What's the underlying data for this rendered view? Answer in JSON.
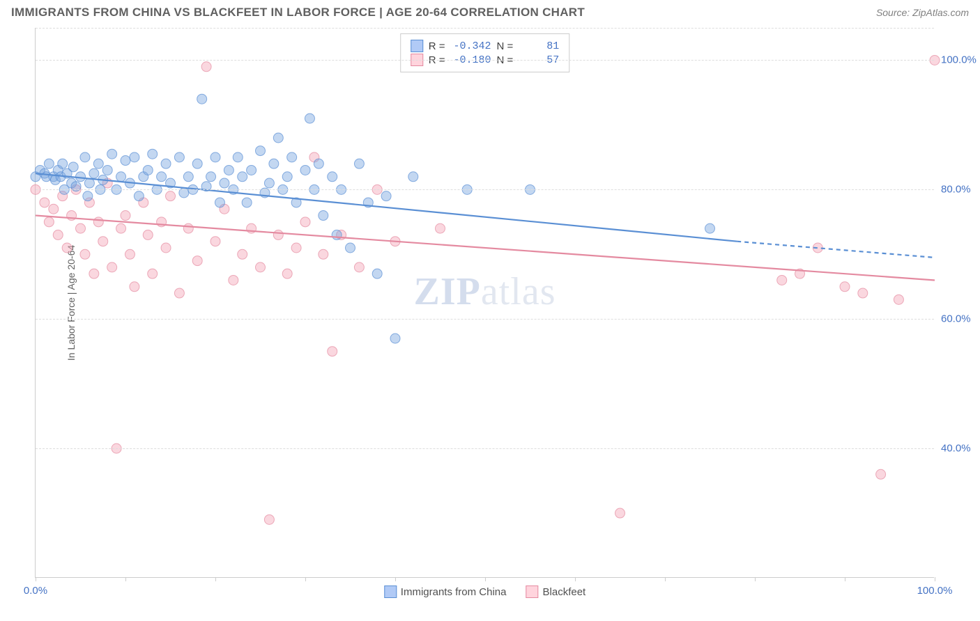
{
  "header": {
    "title": "IMMIGRANTS FROM CHINA VS BLACKFEET IN LABOR FORCE | AGE 20-64 CORRELATION CHART",
    "source_prefix": "Source: ",
    "source_name": "ZipAtlas.com"
  },
  "chart": {
    "type": "scatter",
    "background_color": "#ffffff",
    "grid_color": "#dddddd",
    "axis_color": "#cccccc",
    "label_color": "#4472c4",
    "axis_title_color": "#606060",
    "y_axis_label": "In Labor Force | Age 20-64",
    "xlim": [
      0,
      100
    ],
    "ylim": [
      20,
      105
    ],
    "x_ticks": [
      0,
      10,
      20,
      30,
      40,
      50,
      60,
      70,
      80,
      90,
      100
    ],
    "x_tick_labels": {
      "0": "0.0%",
      "100": "100.0%"
    },
    "y_ticks": [
      40,
      60,
      80,
      100
    ],
    "y_tick_labels": {
      "40": "40.0%",
      "60": "60.0%",
      "80": "80.0%",
      "100": "100.0%"
    },
    "marker_radius": 7,
    "marker_opacity": 0.45,
    "line_width": 2.2,
    "watermark": {
      "text_zip": "ZIP",
      "text_atlas": "atlas"
    }
  },
  "series": {
    "blue": {
      "name": "Immigrants from China",
      "color_fill": "#7ba7e0",
      "color_stroke": "#5a8fd4",
      "R": "-0.342",
      "N": "81",
      "trend": {
        "x1": 0,
        "y1": 82.5,
        "x2": 78,
        "y2": 72.0,
        "x2_ext": 100,
        "y2_ext": 69.5
      },
      "points": [
        [
          0,
          82
        ],
        [
          0.5,
          83
        ],
        [
          1,
          82.5
        ],
        [
          1.2,
          82
        ],
        [
          1.5,
          84
        ],
        [
          2,
          82
        ],
        [
          2.2,
          81.5
        ],
        [
          2.5,
          83
        ],
        [
          2.8,
          82
        ],
        [
          3,
          84
        ],
        [
          3.2,
          80
        ],
        [
          3.5,
          82.5
        ],
        [
          4,
          81
        ],
        [
          4.2,
          83.5
        ],
        [
          4.5,
          80.5
        ],
        [
          5,
          82
        ],
        [
          5.5,
          85
        ],
        [
          5.8,
          79
        ],
        [
          6,
          81
        ],
        [
          6.5,
          82.5
        ],
        [
          7,
          84
        ],
        [
          7.2,
          80
        ],
        [
          7.5,
          81.5
        ],
        [
          8,
          83
        ],
        [
          8.5,
          85.5
        ],
        [
          9,
          80
        ],
        [
          9.5,
          82
        ],
        [
          10,
          84.5
        ],
        [
          10.5,
          81
        ],
        [
          11,
          85
        ],
        [
          11.5,
          79
        ],
        [
          12,
          82
        ],
        [
          12.5,
          83
        ],
        [
          13,
          85.5
        ],
        [
          13.5,
          80
        ],
        [
          14,
          82
        ],
        [
          14.5,
          84
        ],
        [
          15,
          81
        ],
        [
          16,
          85
        ],
        [
          16.5,
          79.5
        ],
        [
          17,
          82
        ],
        [
          17.5,
          80
        ],
        [
          18,
          84
        ],
        [
          18.5,
          94
        ],
        [
          19,
          80.5
        ],
        [
          19.5,
          82
        ],
        [
          20,
          85
        ],
        [
          20.5,
          78
        ],
        [
          21,
          81
        ],
        [
          21.5,
          83
        ],
        [
          22,
          80
        ],
        [
          22.5,
          85
        ],
        [
          23,
          82
        ],
        [
          23.5,
          78
        ],
        [
          24,
          83
        ],
        [
          25,
          86
        ],
        [
          25.5,
          79.5
        ],
        [
          26,
          81
        ],
        [
          26.5,
          84
        ],
        [
          27,
          88
        ],
        [
          27.5,
          80
        ],
        [
          28,
          82
        ],
        [
          28.5,
          85
        ],
        [
          29,
          78
        ],
        [
          30,
          83
        ],
        [
          30.5,
          91
        ],
        [
          31,
          80
        ],
        [
          31.5,
          84
        ],
        [
          32,
          76
        ],
        [
          33,
          82
        ],
        [
          33.5,
          73
        ],
        [
          34,
          80
        ],
        [
          35,
          71
        ],
        [
          36,
          84
        ],
        [
          37,
          78
        ],
        [
          38,
          67
        ],
        [
          39,
          79
        ],
        [
          40,
          57
        ],
        [
          42,
          82
        ],
        [
          48,
          80
        ],
        [
          55,
          80
        ],
        [
          75,
          74
        ]
      ]
    },
    "pink": {
      "name": "Blackfeet",
      "color_fill": "#f4a7b9",
      "color_stroke": "#e48aa0",
      "R": "-0.180",
      "N": "57",
      "trend": {
        "x1": 0,
        "y1": 76.0,
        "x2": 100,
        "y2": 66.0
      },
      "points": [
        [
          0,
          80
        ],
        [
          1,
          78
        ],
        [
          1.5,
          75
        ],
        [
          2,
          77
        ],
        [
          2.5,
          73
        ],
        [
          3,
          79
        ],
        [
          3.5,
          71
        ],
        [
          4,
          76
        ],
        [
          4.5,
          80
        ],
        [
          5,
          74
        ],
        [
          5.5,
          70
        ],
        [
          6,
          78
        ],
        [
          6.5,
          67
        ],
        [
          7,
          75
        ],
        [
          7.5,
          72
        ],
        [
          8,
          81
        ],
        [
          8.5,
          68
        ],
        [
          9,
          40
        ],
        [
          9.5,
          74
        ],
        [
          10,
          76
        ],
        [
          10.5,
          70
        ],
        [
          11,
          65
        ],
        [
          12,
          78
        ],
        [
          12.5,
          73
        ],
        [
          13,
          67
        ],
        [
          14,
          75
        ],
        [
          14.5,
          71
        ],
        [
          15,
          79
        ],
        [
          16,
          64
        ],
        [
          17,
          74
        ],
        [
          18,
          69
        ],
        [
          19,
          99
        ],
        [
          20,
          72
        ],
        [
          21,
          77
        ],
        [
          22,
          66
        ],
        [
          23,
          70
        ],
        [
          24,
          74
        ],
        [
          25,
          68
        ],
        [
          26,
          29
        ],
        [
          27,
          73
        ],
        [
          28,
          67
        ],
        [
          29,
          71
        ],
        [
          30,
          75
        ],
        [
          31,
          85
        ],
        [
          32,
          70
        ],
        [
          33,
          55
        ],
        [
          34,
          73
        ],
        [
          36,
          68
        ],
        [
          38,
          80
        ],
        [
          40,
          72
        ],
        [
          45,
          74
        ],
        [
          65,
          30
        ],
        [
          83,
          66
        ],
        [
          85,
          67
        ],
        [
          87,
          71
        ],
        [
          90,
          65
        ],
        [
          92,
          64
        ],
        [
          94,
          36
        ],
        [
          96,
          63
        ],
        [
          100,
          100
        ]
      ]
    }
  },
  "legend": {
    "series1": "Immigrants from China",
    "series2": "Blackfeet"
  },
  "stats_box": {
    "r_label": "R =",
    "n_label": "N ="
  }
}
